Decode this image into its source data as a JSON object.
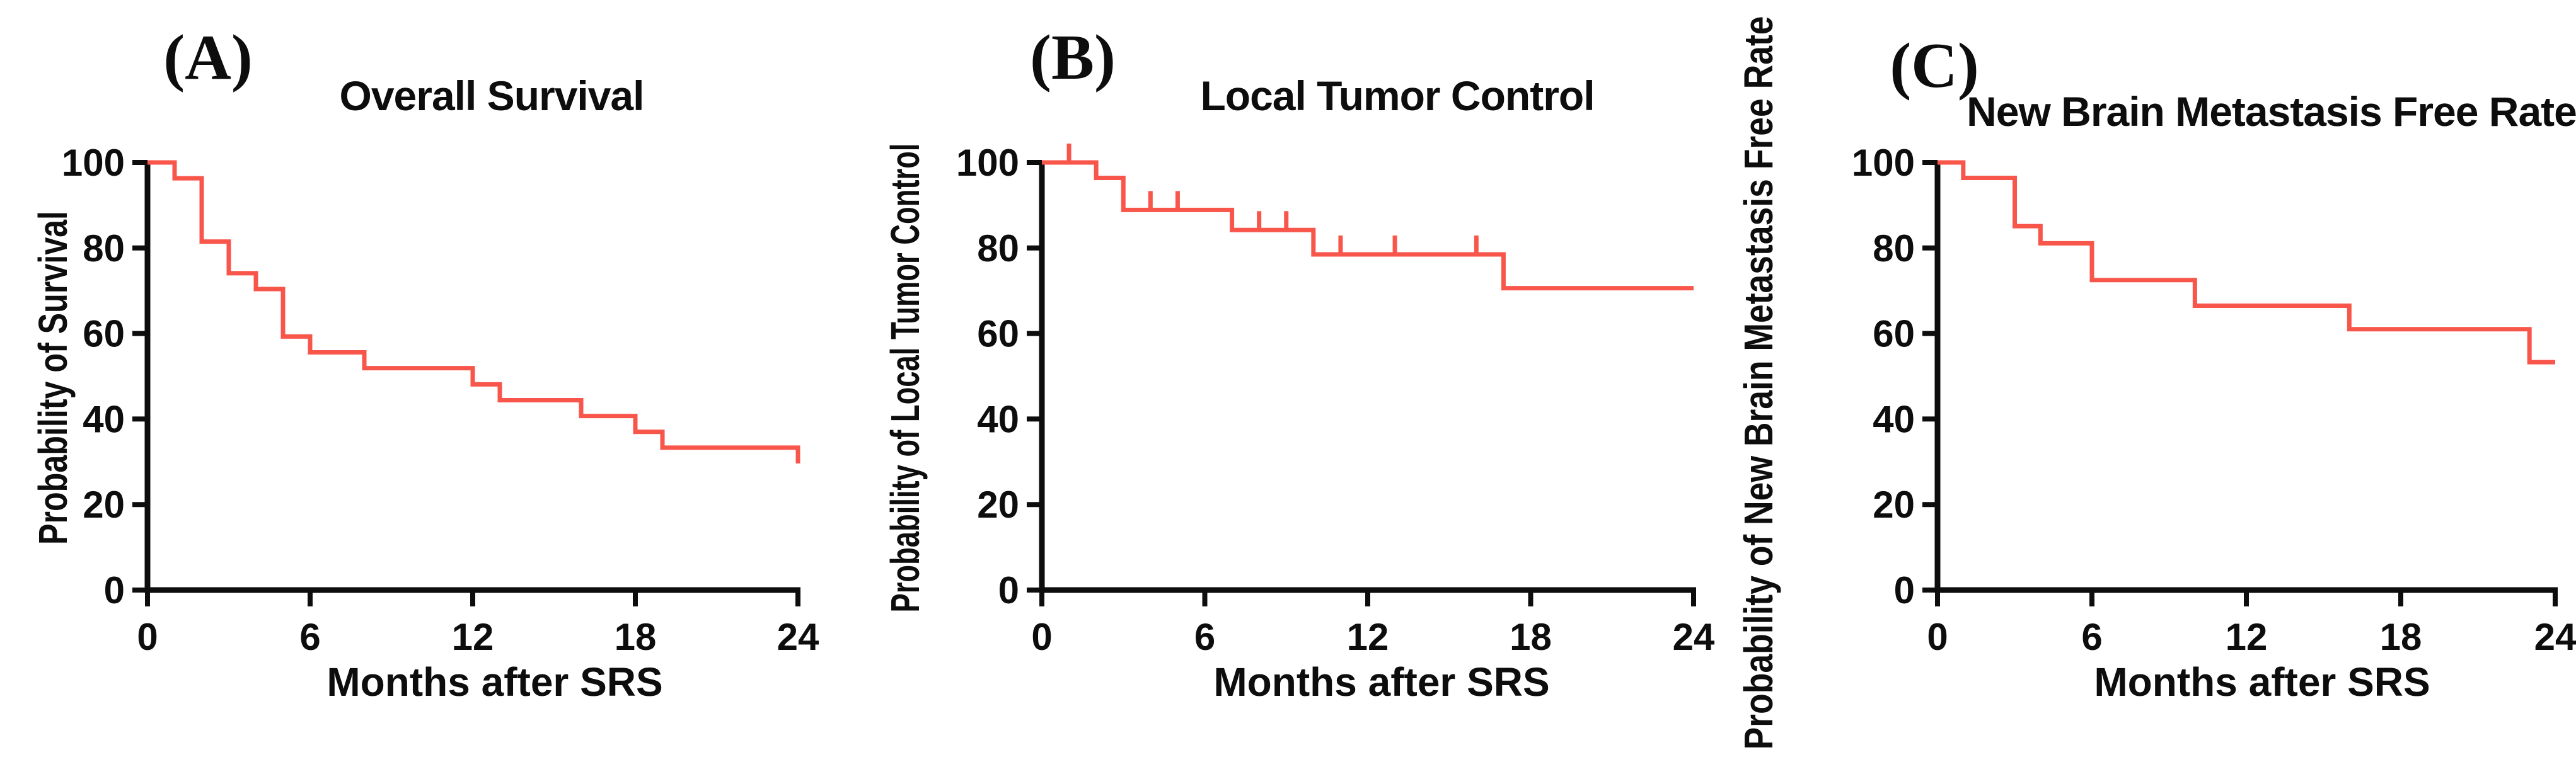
{
  "figure": {
    "background": "#ffffff",
    "axis_color": "#0d0d0d",
    "curve_color": "#f9564b"
  },
  "chart_data": [
    {
      "type": "line",
      "subtype": "kaplan_meier_step",
      "panel_letter": "(A)",
      "title": "Overall Survival",
      "xlabel": "Months after SRS",
      "ylabel": "Probability of Survival",
      "xlim": [
        0,
        24
      ],
      "ylim": [
        0,
        100
      ],
      "x_ticks": [
        "0",
        "6",
        "12",
        "18",
        "24"
      ],
      "y_ticks": [
        "0",
        "20",
        "40",
        "60",
        "80",
        "100"
      ],
      "grid": false,
      "legend": false,
      "line_color": "#f9564b",
      "steps": [
        [
          0,
          100
        ],
        [
          1,
          96.3
        ],
        [
          2,
          81.5
        ],
        [
          3,
          74.1
        ],
        [
          4,
          70.4
        ],
        [
          5,
          59.3
        ],
        [
          6,
          55.6
        ],
        [
          8,
          51.9
        ],
        [
          12,
          48.1
        ],
        [
          13,
          44.4
        ],
        [
          16,
          40.7
        ],
        [
          18,
          37.0
        ],
        [
          19,
          33.3
        ],
        [
          24,
          29.6
        ]
      ],
      "censor_marks": []
    },
    {
      "type": "line",
      "subtype": "kaplan_meier_step",
      "panel_letter": "(B)",
      "title": "Local Tumor Control",
      "xlabel": "Months after SRS",
      "ylabel": "Probability of Local Tumor Control",
      "xlim": [
        0,
        24
      ],
      "ylim": [
        0,
        100
      ],
      "x_ticks": [
        "0",
        "6",
        "12",
        "18",
        "24"
      ],
      "y_ticks": [
        "0",
        "20",
        "40",
        "60",
        "80",
        "100"
      ],
      "grid": false,
      "legend": false,
      "line_color": "#f9564b",
      "steps": [
        [
          0,
          100
        ],
        [
          2,
          96.4
        ],
        [
          3,
          88.9
        ],
        [
          7,
          84.2
        ],
        [
          10,
          78.5
        ],
        [
          17,
          70.6
        ]
      ],
      "censor_marks": [
        [
          1,
          100
        ],
        [
          4,
          88.9
        ],
        [
          5,
          88.9
        ],
        [
          8,
          84.2
        ],
        [
          9,
          84.2
        ],
        [
          11,
          78.5
        ],
        [
          13,
          78.5
        ],
        [
          16,
          78.5
        ]
      ]
    },
    {
      "type": "line",
      "subtype": "kaplan_meier_step",
      "panel_letter": "(C)",
      "title": "New Brain Metastasis Free Rate",
      "xlabel": "Months after SRS",
      "ylabel": "Probability of New Brain Metastasis Free Rate",
      "xlim": [
        0,
        24
      ],
      "ylim": [
        0,
        100
      ],
      "x_ticks": [
        "0",
        "6",
        "12",
        "18",
        "24"
      ],
      "y_ticks": [
        "0",
        "20",
        "40",
        "60",
        "80",
        "100"
      ],
      "grid": false,
      "legend": false,
      "line_color": "#f9564b",
      "steps": [
        [
          0,
          100
        ],
        [
          1,
          96.4
        ],
        [
          3,
          85.1
        ],
        [
          4,
          81.1
        ],
        [
          6,
          72.5
        ],
        [
          10,
          66.5
        ],
        [
          16,
          61.0
        ],
        [
          23,
          53.3
        ]
      ],
      "censor_marks": []
    }
  ]
}
